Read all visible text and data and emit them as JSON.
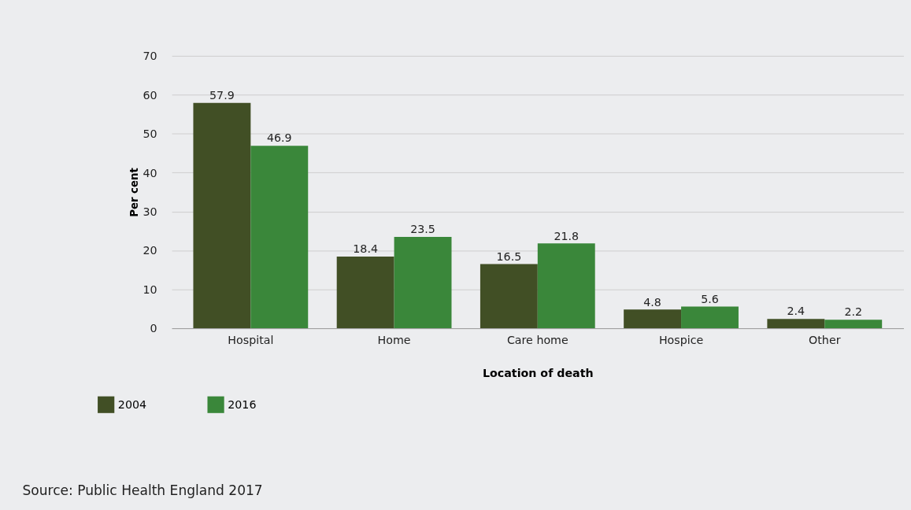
{
  "chart_data": {
    "type": "bar",
    "xlabel": "Location of death",
    "ylabel": "Per cent",
    "categories": [
      "Hospital",
      "Home",
      "Care home",
      "Hospice",
      "Other"
    ],
    "series": [
      {
        "name": "2004",
        "color": "#414f25",
        "values": [
          57.9,
          18.4,
          16.5,
          4.8,
          2.4
        ]
      },
      {
        "name": "2016",
        "color": "#3a873a",
        "values": [
          46.9,
          23.5,
          21.8,
          5.6,
          2.2
        ]
      }
    ],
    "ylim": [
      0,
      70
    ],
    "yticks": [
      0,
      10,
      20,
      30,
      40,
      50,
      60,
      70
    ],
    "grid": "y",
    "legend": "bottom left",
    "data_labels": true,
    "annotations": [
      "Source: Public Health England 2017"
    ]
  }
}
